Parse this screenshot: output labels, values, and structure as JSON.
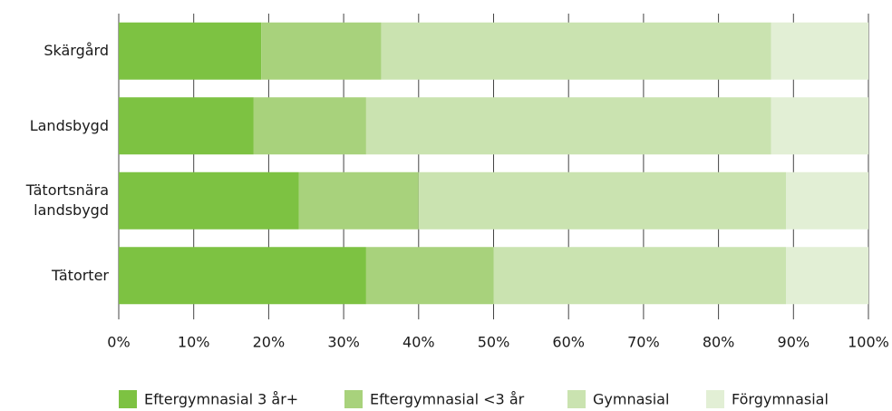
{
  "chart_data": {
    "type": "stacked-bar-horizontal",
    "categories": [
      "Skärgård",
      "Landsbygd",
      "Tätortsnära landsbygd",
      "Tätorter"
    ],
    "series": [
      {
        "name": "Eftergymnasial 3 år+",
        "color": "#7dc242",
        "values": [
          19,
          18,
          24,
          33
        ]
      },
      {
        "name": "Eftergymnasial <3 år",
        "color": "#a8d27c",
        "values": [
          16,
          15,
          16,
          17
        ]
      },
      {
        "name": "Gymnasial",
        "color": "#cae3b0",
        "values": [
          52,
          54,
          49,
          39
        ]
      },
      {
        "name": "Förgymnasial",
        "color": "#e2efd5",
        "values": [
          13,
          13,
          11,
          11
        ]
      }
    ],
    "xlim": [
      0,
      100
    ],
    "xticks": [
      {
        "value": 0,
        "label": "0%"
      },
      {
        "value": 10,
        "label": "10%"
      },
      {
        "value": 20,
        "label": "20%"
      },
      {
        "value": 30,
        "label": "30%"
      },
      {
        "value": 40,
        "label": "40%"
      },
      {
        "value": 50,
        "label": "50%"
      },
      {
        "value": 60,
        "label": "60%"
      },
      {
        "value": 70,
        "label": "70%"
      },
      {
        "value": 80,
        "label": "80%"
      },
      {
        "value": 90,
        "label": "90%"
      },
      {
        "value": 100,
        "label": "100%"
      }
    ],
    "grid": true,
    "legend": "bottom"
  }
}
